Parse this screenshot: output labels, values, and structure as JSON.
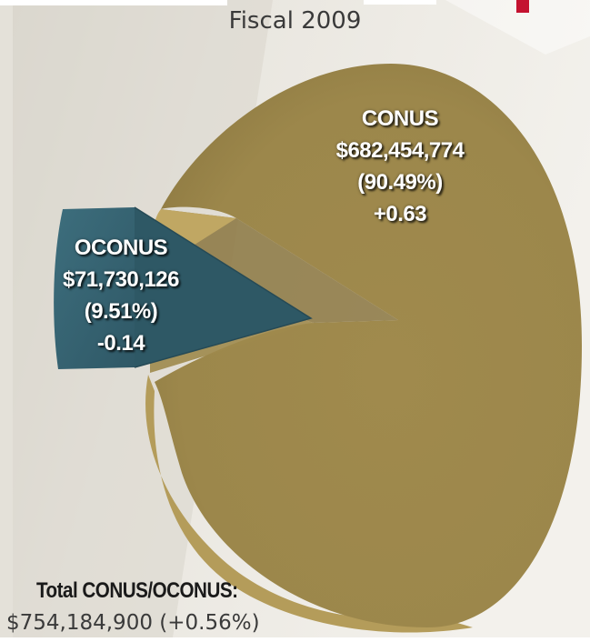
{
  "chart_data": {
    "type": "pie",
    "subtitle": "Fiscal 2009",
    "slices": [
      {
        "name": "CONUS",
        "value": 682454774,
        "value_label": "$682,454,774",
        "percent_label": "(90.49%)",
        "change_label": "+0.63",
        "color": "#a68f4e"
      },
      {
        "name": "OCONUS",
        "value": 71730126,
        "value_label": "$71,730,126",
        "percent_label": "(9.51%)",
        "change_label": "-0.14",
        "color": "#3f6f7e"
      }
    ],
    "total": {
      "label": "Total CONUS/OCONUS:",
      "value_label": "$754,184,900 (+0.56%)"
    }
  },
  "colors": {
    "accent_red": "#c4122f",
    "background": "#ece9e2"
  }
}
